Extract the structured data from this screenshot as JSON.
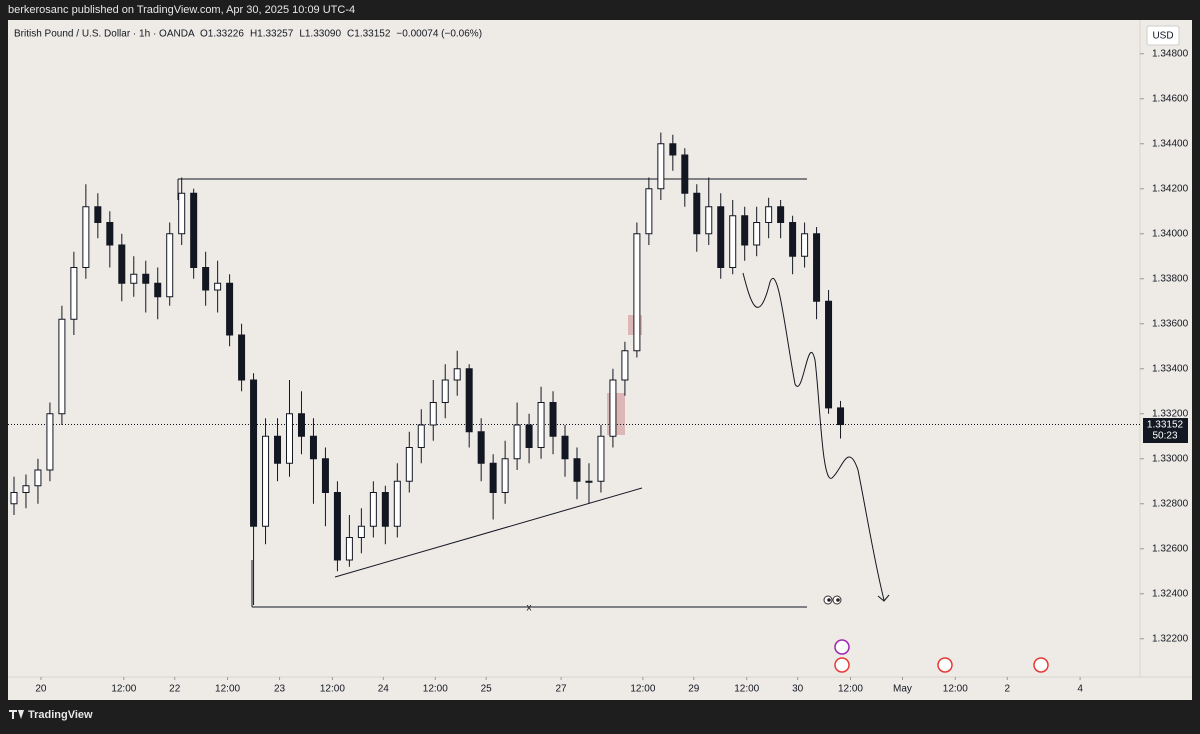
{
  "header": {
    "publisher": "berkerosanc published on TradingView.com, Apr 30, 2025 10:09 UTC-4",
    "brand": "TradingView"
  },
  "chart_data": {
    "type": "candlestick",
    "title": "British Pound / U.S. Dollar · 1h · OANDA",
    "legend_values": [
      "O1.33226",
      "H1.33257",
      "L1.33090",
      "C1.33152",
      "−0.00074 (−0.06%)"
    ],
    "currency": "USD",
    "candle_color": "#131722",
    "candles": [
      [
        1.328,
        1.3292,
        1.3275,
        1.3285
      ],
      [
        1.3285,
        1.3293,
        1.3278,
        1.3288
      ],
      [
        1.3288,
        1.33,
        1.328,
        1.3295
      ],
      [
        1.3295,
        1.3325,
        1.329,
        1.332
      ],
      [
        1.332,
        1.3368,
        1.3315,
        1.3362
      ],
      [
        1.3362,
        1.3392,
        1.3355,
        1.3385
      ],
      [
        1.3385,
        1.3422,
        1.338,
        1.3412
      ],
      [
        1.3412,
        1.3418,
        1.3398,
        1.3405
      ],
      [
        1.3405,
        1.341,
        1.3385,
        1.3395
      ],
      [
        1.3395,
        1.34,
        1.337,
        1.3378
      ],
      [
        1.3378,
        1.339,
        1.3372,
        1.3382
      ],
      [
        1.3382,
        1.3388,
        1.3365,
        1.3378
      ],
      [
        1.3378,
        1.3385,
        1.3362,
        1.3372
      ],
      [
        1.3372,
        1.3405,
        1.3368,
        1.34
      ],
      [
        1.34,
        1.3425,
        1.3395,
        1.3418
      ],
      [
        1.3418,
        1.342,
        1.338,
        1.3385
      ],
      [
        1.3385,
        1.3392,
        1.3368,
        1.3375
      ],
      [
        1.3375,
        1.3388,
        1.3365,
        1.3378
      ],
      [
        1.3378,
        1.3382,
        1.335,
        1.3355
      ],
      [
        1.3355,
        1.336,
        1.333,
        1.3335
      ],
      [
        1.3335,
        1.3338,
        1.3235,
        1.327
      ],
      [
        1.327,
        1.3318,
        1.3262,
        1.331
      ],
      [
        1.331,
        1.3318,
        1.329,
        1.3298
      ],
      [
        1.3298,
        1.3335,
        1.3292,
        1.332
      ],
      [
        1.332,
        1.333,
        1.3302,
        1.331
      ],
      [
        1.331,
        1.3318,
        1.328,
        1.33
      ],
      [
        1.33,
        1.3305,
        1.327,
        1.3285
      ],
      [
        1.3285,
        1.329,
        1.325,
        1.3255
      ],
      [
        1.3255,
        1.3275,
        1.3252,
        1.3265
      ],
      [
        1.3265,
        1.3278,
        1.3258,
        1.327
      ],
      [
        1.327,
        1.329,
        1.3265,
        1.3285
      ],
      [
        1.3285,
        1.3288,
        1.3262,
        1.327
      ],
      [
        1.327,
        1.3298,
        1.3265,
        1.329
      ],
      [
        1.329,
        1.3312,
        1.3285,
        1.3305
      ],
      [
        1.3305,
        1.3322,
        1.3298,
        1.3315
      ],
      [
        1.3315,
        1.3335,
        1.3308,
        1.3325
      ],
      [
        1.3325,
        1.3342,
        1.3318,
        1.3335
      ],
      [
        1.3335,
        1.3348,
        1.3328,
        1.334
      ],
      [
        1.334,
        1.3342,
        1.3305,
        1.3312
      ],
      [
        1.3312,
        1.3318,
        1.329,
        1.3298
      ],
      [
        1.3298,
        1.3302,
        1.3273,
        1.3285
      ],
      [
        1.3285,
        1.3308,
        1.328,
        1.33
      ],
      [
        1.33,
        1.3325,
        1.3295,
        1.3315
      ],
      [
        1.3315,
        1.332,
        1.3298,
        1.3305
      ],
      [
        1.3305,
        1.3332,
        1.33,
        1.3325
      ],
      [
        1.3325,
        1.333,
        1.3302,
        1.331
      ],
      [
        1.331,
        1.3315,
        1.3292,
        1.33
      ],
      [
        1.33,
        1.3305,
        1.3282,
        1.329
      ],
      [
        1.329,
        1.3298,
        1.328,
        1.329
      ],
      [
        1.329,
        1.3315,
        1.3285,
        1.331
      ],
      [
        1.331,
        1.334,
        1.3305,
        1.3335
      ],
      [
        1.3335,
        1.3352,
        1.3328,
        1.3348
      ],
      [
        1.3348,
        1.3405,
        1.3345,
        1.34
      ],
      [
        1.34,
        1.3425,
        1.3395,
        1.342
      ],
      [
        1.342,
        1.3445,
        1.3415,
        1.344
      ],
      [
        1.344,
        1.3444,
        1.3428,
        1.3435
      ],
      [
        1.3435,
        1.3438,
        1.3412,
        1.3418
      ],
      [
        1.3418,
        1.3422,
        1.3392,
        1.34
      ],
      [
        1.34,
        1.3425,
        1.3395,
        1.3412
      ],
      [
        1.3412,
        1.3418,
        1.338,
        1.3385
      ],
      [
        1.3385,
        1.3415,
        1.3382,
        1.3408
      ],
      [
        1.3408,
        1.3412,
        1.3388,
        1.3395
      ],
      [
        1.3395,
        1.3412,
        1.339,
        1.3405
      ],
      [
        1.3405,
        1.3416,
        1.3398,
        1.3412
      ],
      [
        1.3412,
        1.3415,
        1.3398,
        1.3405
      ],
      [
        1.3405,
        1.3408,
        1.3382,
        1.339
      ],
      [
        1.339,
        1.3405,
        1.3385,
        1.34
      ],
      [
        1.34,
        1.3403,
        1.3362,
        1.337
      ],
      [
        1.337,
        1.3375,
        1.332,
        1.33226
      ],
      [
        1.33226,
        1.33257,
        1.3309,
        1.33152
      ]
    ],
    "xlim": [
      -0.5,
      94
    ],
    "xticks": [
      {
        "value": 2.25,
        "label": "20"
      },
      {
        "value": 9.17,
        "label": "12:00"
      },
      {
        "value": 13.42,
        "label": "22"
      },
      {
        "value": 17.83,
        "label": "12:00"
      },
      {
        "value": 22.17,
        "label": "23"
      },
      {
        "value": 26.58,
        "label": "12:00"
      },
      {
        "value": 30.83,
        "label": "24"
      },
      {
        "value": 35.17,
        "label": "12:00"
      },
      {
        "value": 39.42,
        "label": "25"
      },
      {
        "value": 45.67,
        "label": "27"
      },
      {
        "value": 52.5,
        "label": "12:00"
      },
      {
        "value": 56.75,
        "label": "29"
      },
      {
        "value": 61.17,
        "label": "12:00"
      },
      {
        "value": 65.42,
        "label": "30"
      },
      {
        "value": 69.83,
        "label": "12:00"
      },
      {
        "value": 74.17,
        "label": "May"
      },
      {
        "value": 78.58,
        "label": "12:00"
      },
      {
        "value": 82.92,
        "label": "2"
      },
      {
        "value": 89,
        "label": "4"
      }
    ],
    "ylim": [
      1.3203,
      1.3495
    ],
    "yticks": [
      {
        "value": 1.322,
        "label": "1.32200"
      },
      {
        "value": 1.324,
        "label": "1.32400"
      },
      {
        "value": 1.326,
        "label": "1.32600"
      },
      {
        "value": 1.328,
        "label": "1.32800"
      },
      {
        "value": 1.33,
        "label": "1.33000"
      },
      {
        "value": 1.332,
        "label": "1.33200"
      },
      {
        "value": 1.334,
        "label": "1.33400"
      },
      {
        "value": 1.336,
        "label": "1.33600"
      },
      {
        "value": 1.338,
        "label": "1.33800"
      },
      {
        "value": 1.34,
        "label": "1.34000"
      },
      {
        "value": 1.342,
        "label": "1.34200"
      },
      {
        "value": 1.344,
        "label": "1.34400"
      },
      {
        "value": 1.346,
        "label": "1.34600"
      },
      {
        "value": 1.348,
        "label": "1.34800"
      }
    ],
    "last_price": {
      "value": 1.33152,
      "label": "1.33152"
    },
    "countdown": "50:23",
    "annotation": "x"
  }
}
